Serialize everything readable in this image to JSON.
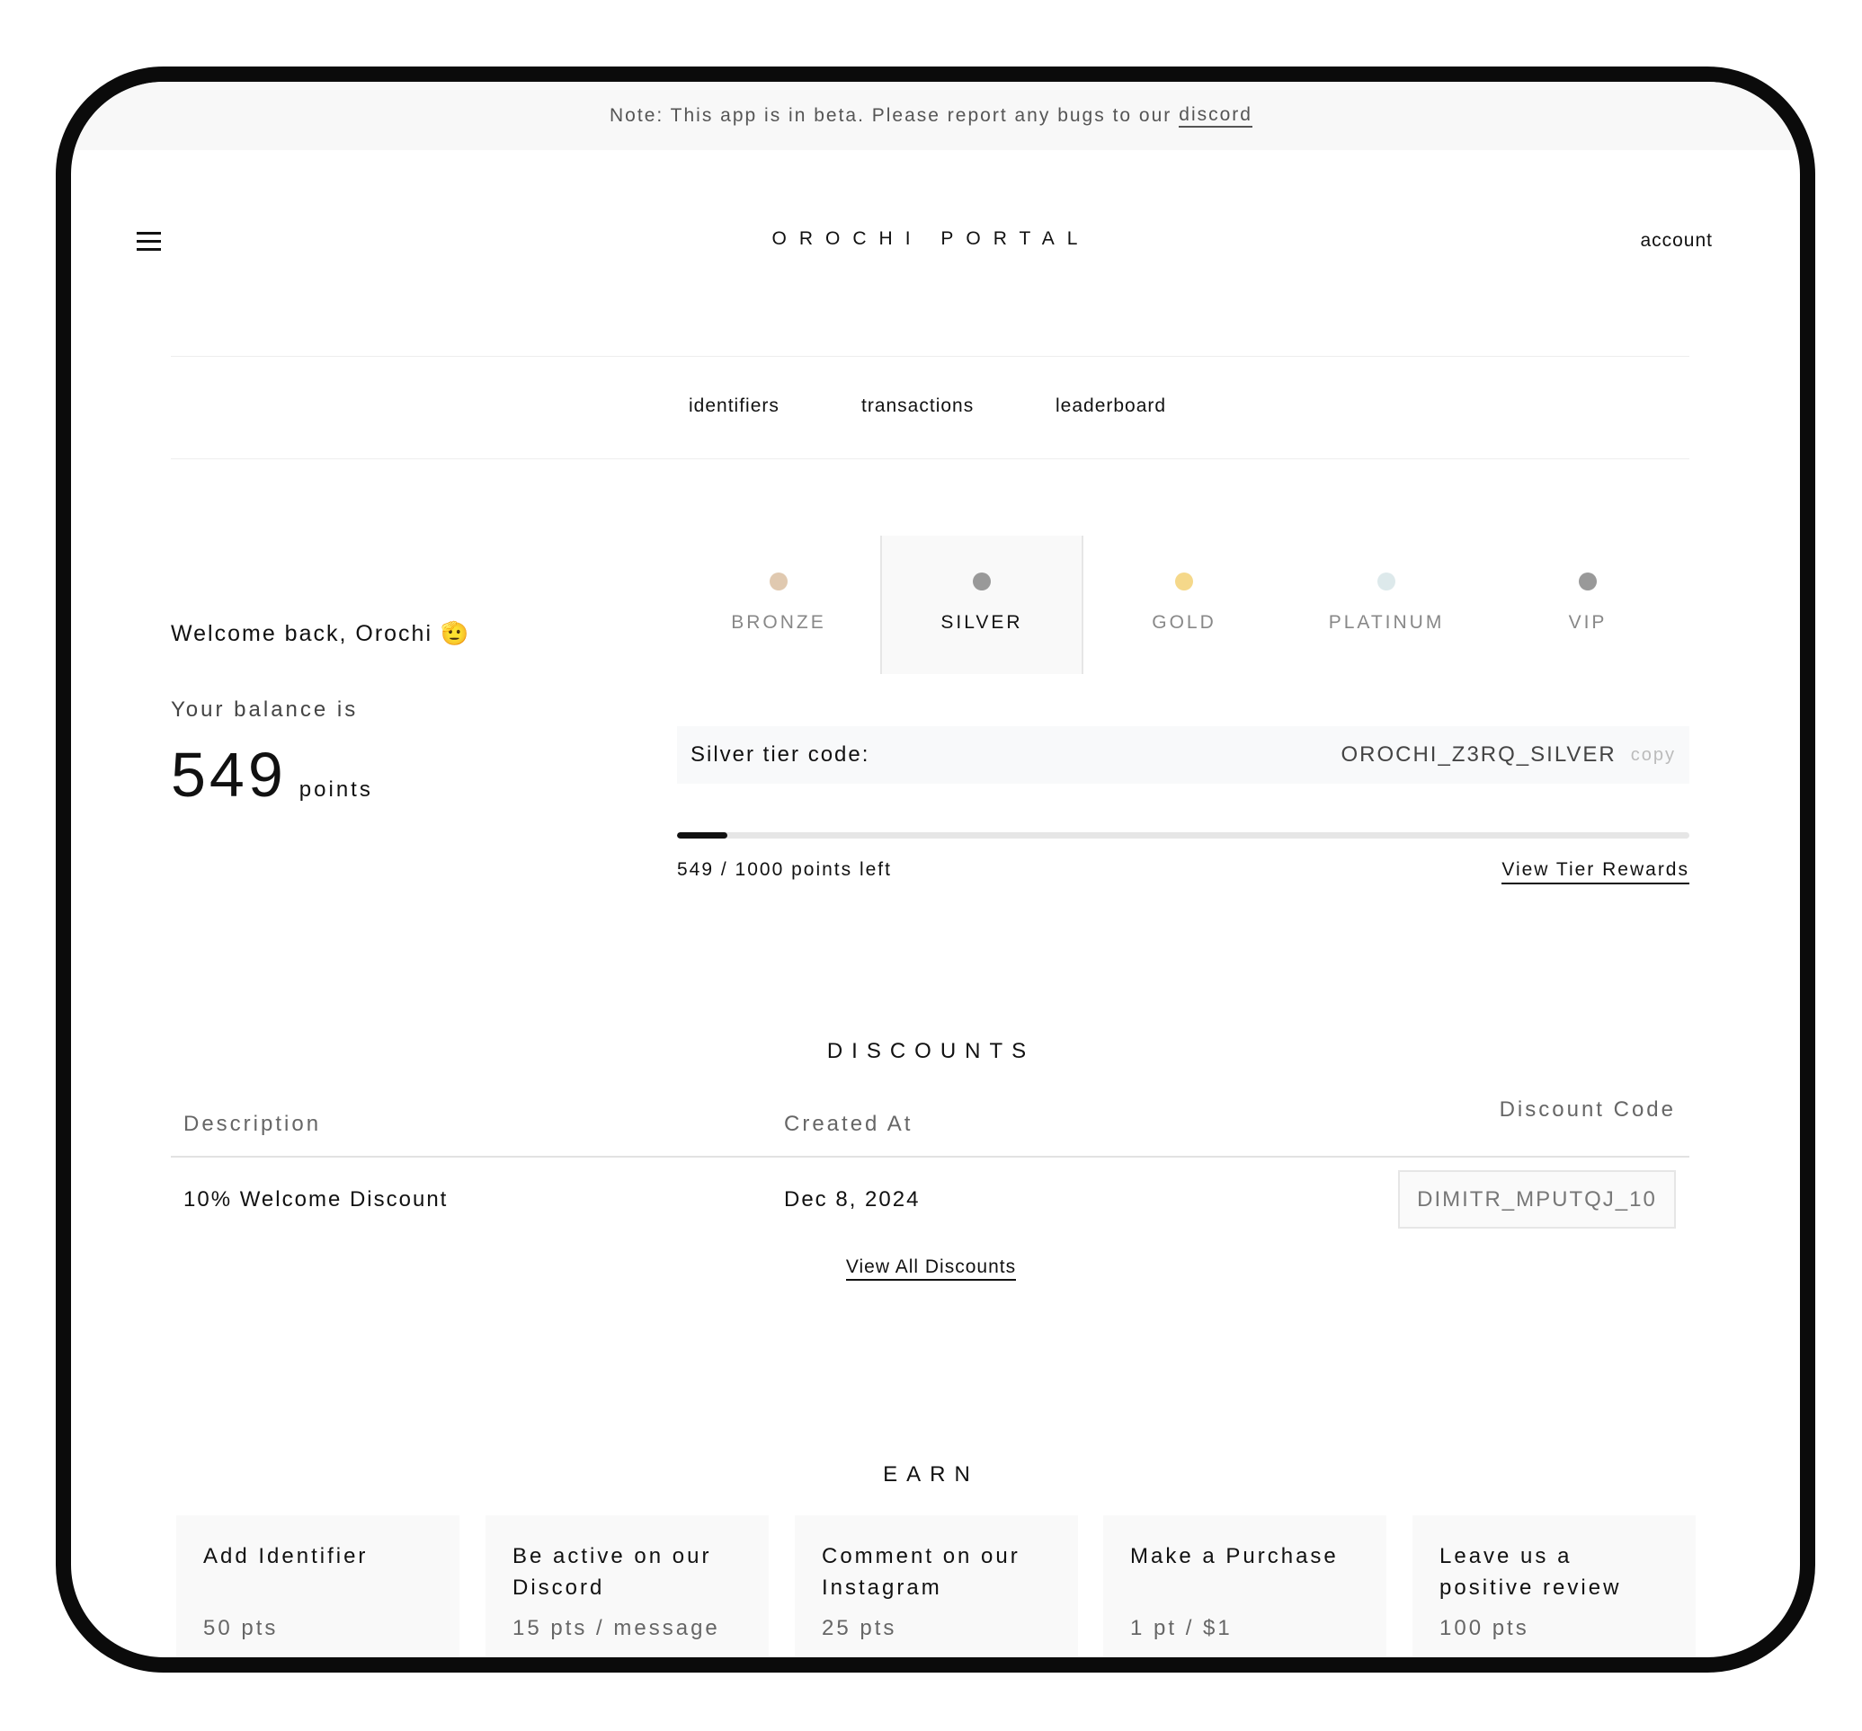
{
  "beta_notice": {
    "text": "Note: This app is in beta. Please report any bugs to our",
    "link": "discord"
  },
  "header": {
    "menu_icon": "hamburger-icon",
    "title": "OROCHI PORTAL",
    "account": "account"
  },
  "nav": [
    "identifiers",
    "transactions",
    "leaderboard"
  ],
  "welcome": {
    "greeting": "Welcome back, Orochi",
    "emoji": "🫡",
    "balance_label": "Your balance is",
    "balance": "549",
    "unit": "points"
  },
  "tiers": [
    {
      "label": "BRONZE",
      "color": "#e0c9b0",
      "active": false
    },
    {
      "label": "SILVER",
      "color": "#999999",
      "active": true
    },
    {
      "label": "GOLD",
      "color": "#f5d88a",
      "active": false
    },
    {
      "label": "PLATINUM",
      "color": "#dde9eb",
      "active": false
    },
    {
      "label": "VIP",
      "color": "#999999",
      "active": false
    }
  ],
  "tier_code": {
    "label": "Silver tier code:",
    "value": "OROCHI_Z3RQ_SILVER",
    "copy": "copy"
  },
  "progress": {
    "percent": 5,
    "text": "549 / 1000 points left",
    "rewards_link": "View Tier Rewards"
  },
  "discounts": {
    "title": "DISCOUNTS",
    "columns": [
      "Description",
      "Created At",
      "Discount Code"
    ],
    "rows": [
      {
        "description": "10% Welcome Discount",
        "created_at": "Dec 8, 2024",
        "code": "DIMITR_MPUTQJ_10"
      }
    ],
    "view_all": "View All Discounts"
  },
  "earn": {
    "title": "EARN",
    "cards": [
      {
        "title": "Add Identifier",
        "points": "50 pts"
      },
      {
        "title": "Be active on our Discord",
        "points": "15 pts / message"
      },
      {
        "title": "Comment on our Instagram",
        "points": "25 pts"
      },
      {
        "title": "Make a Purchase",
        "points": "1 pt / $1"
      },
      {
        "title": "Leave us a positive review",
        "points": "100 pts"
      }
    ]
  }
}
